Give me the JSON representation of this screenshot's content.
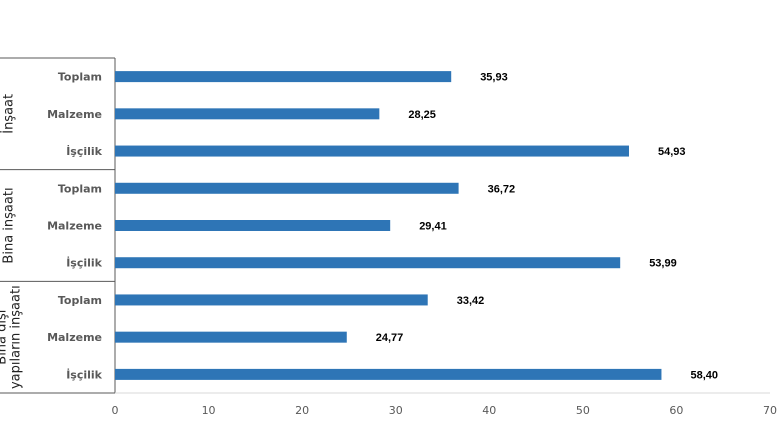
{
  "chart_data": {
    "type": "bar",
    "orientation": "horizontal",
    "title": "",
    "xlabel": "",
    "ylabel": "",
    "xlim": [
      0,
      70
    ],
    "xticks": [
      0,
      10,
      20,
      30,
      40,
      50,
      60,
      70
    ],
    "grid": false,
    "legend": "none",
    "bar_color": "#2E75B6",
    "groups": [
      {
        "name": "İnşaat",
        "categories": [
          "Toplam",
          "Malzeme",
          "İşçilik"
        ],
        "values": [
          35.93,
          28.25,
          54.93
        ],
        "value_labels": [
          "35,93",
          "28,25",
          "54,93"
        ]
      },
      {
        "name": "Bina inşaatı",
        "categories": [
          "Toplam",
          "Malzeme",
          "İşçilik"
        ],
        "values": [
          36.72,
          29.41,
          53.99
        ],
        "value_labels": [
          "36,72",
          "29,41",
          "53,99"
        ]
      },
      {
        "name": "Bina dışı yapıların inşaatı",
        "name_lines": [
          "Bina dışı",
          "yapıların inşaatı"
        ],
        "categories": [
          "Toplam",
          "Malzeme",
          "İşçilik"
        ],
        "values": [
          33.42,
          24.77,
          58.4
        ],
        "value_labels": [
          "33,42",
          "24,77",
          "58,40"
        ]
      }
    ]
  }
}
